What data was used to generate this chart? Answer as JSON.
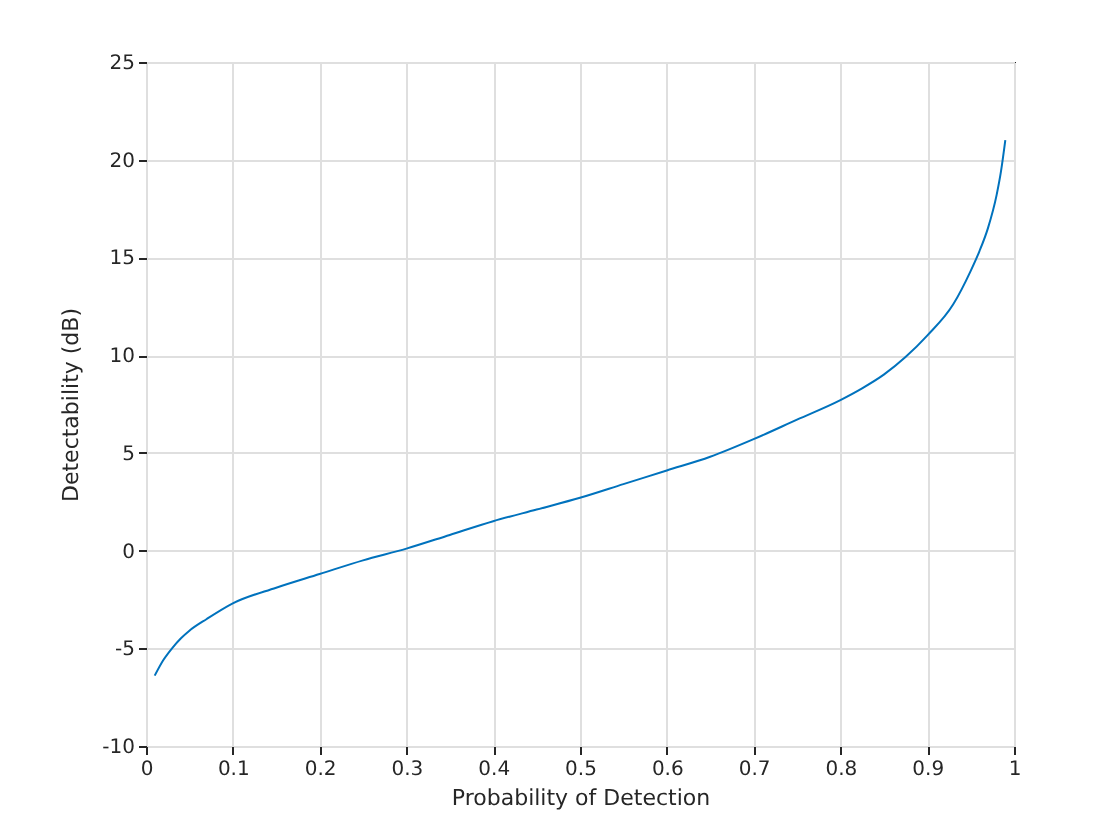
{
  "chart_data": {
    "type": "line",
    "xlabel": "Probability of Detection",
    "ylabel": "Detectability (dB)",
    "x": [
      0.01,
      0.02,
      0.03,
      0.04,
      0.05,
      0.07,
      0.1,
      0.15,
      0.2,
      0.25,
      0.3,
      0.35,
      0.4,
      0.45,
      0.5,
      0.55,
      0.6,
      0.65,
      0.7,
      0.75,
      0.8,
      0.825,
      0.85,
      0.875,
      0.9,
      0.93,
      0.95,
      0.96,
      0.97,
      0.98,
      0.985,
      0.99
    ],
    "values": [
      -6.4,
      -5.6,
      -5.0,
      -4.5,
      -4.1,
      -3.5,
      -2.7,
      -1.9,
      -1.2,
      -0.5,
      0.1,
      0.8,
      1.5,
      2.1,
      2.7,
      3.4,
      4.1,
      4.8,
      5.7,
      6.7,
      7.7,
      8.3,
      9.0,
      9.9,
      11.0,
      12.6,
      14.3,
      15.3,
      16.5,
      18.2,
      19.4,
      21.0
    ],
    "color": "#0072bd",
    "xlim": [
      0,
      1
    ],
    "xticks": [
      0,
      0.1,
      0.2,
      0.3,
      0.4,
      0.5,
      0.6,
      0.7,
      0.8,
      0.9,
      1
    ],
    "ylim": [
      -10,
      25
    ],
    "yticks": [
      -10,
      -5,
      0,
      5,
      10,
      15,
      20,
      25
    ],
    "grid": true
  }
}
